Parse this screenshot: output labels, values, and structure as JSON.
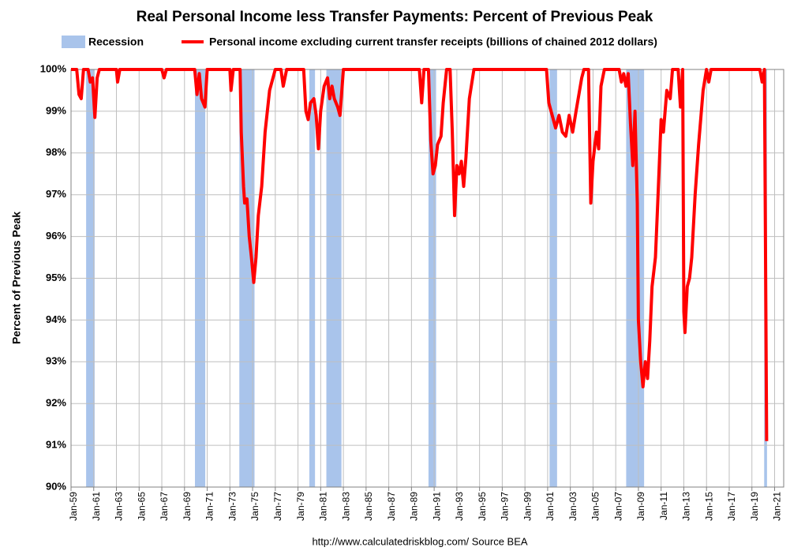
{
  "chart_data": {
    "type": "line",
    "title": "Real Personal Income less Transfer Payments: Percent of Previous Peak",
    "ylabel": "Percent of Previous Peak",
    "source": "http://www.calculatedriskblog.com/    Source BEA",
    "recession_name": "Recession",
    "recession_color": "#a9c4eb",
    "recessions": [
      [
        1960.33,
        1961.08
      ],
      [
        1969.92,
        1970.83
      ],
      [
        1973.83,
        1975.17
      ],
      [
        1980.0,
        1980.5
      ],
      [
        1981.5,
        1982.83
      ],
      [
        1990.5,
        1991.17
      ],
      [
        2001.17,
        2001.83
      ],
      [
        2007.92,
        2009.5
      ],
      [
        2020.08,
        2020.33
      ]
    ],
    "series": [
      {
        "name": "Personal income excluding current transfer receipts (billions of chained 2012 dollars)",
        "color": "#ff0000",
        "x": [
          1959.0,
          1959.5,
          1959.7,
          1959.9,
          1960.1,
          1960.5,
          1960.7,
          1960.9,
          1961.1,
          1961.3,
          1961.5,
          1963.0,
          1963.1,
          1963.3,
          1967.0,
          1967.2,
          1967.4,
          1969.9,
          1970.1,
          1970.3,
          1970.5,
          1970.8,
          1971.0,
          1973.0,
          1973.1,
          1973.3,
          1973.9,
          1974.0,
          1974.2,
          1974.3,
          1974.5,
          1974.7,
          1974.9,
          1975.1,
          1975.3,
          1975.5,
          1975.8,
          1976.1,
          1976.5,
          1977.0,
          1977.5,
          1977.7,
          1978.0,
          1979.5,
          1979.7,
          1979.9,
          1980.1,
          1980.4,
          1980.6,
          1980.8,
          1981.0,
          1981.3,
          1981.6,
          1981.8,
          1982.0,
          1982.2,
          1982.5,
          1982.7,
          1983.0,
          1989.7,
          1989.9,
          1990.1,
          1990.5,
          1990.7,
          1990.9,
          1991.1,
          1991.3,
          1991.6,
          1991.8,
          1992.1,
          1992.4,
          1992.6,
          1992.8,
          1993.0,
          1993.2,
          1993.4,
          1993.6,
          1993.8,
          1994.1,
          1994.5,
          2000.9,
          2001.1,
          2001.4,
          2001.7,
          2002.0,
          2002.3,
          2002.6,
          2002.9,
          2003.2,
          2003.5,
          2004.0,
          2004.2,
          2004.6,
          2004.8,
          2005.0,
          2005.3,
          2005.5,
          2005.7,
          2006.0,
          2007.3,
          2007.5,
          2007.7,
          2007.9,
          2008.1,
          2008.3,
          2008.5,
          2008.7,
          2008.9,
          2009.0,
          2009.2,
          2009.4,
          2009.6,
          2009.8,
          2010.0,
          2010.2,
          2010.5,
          2010.7,
          2011.0,
          2011.2,
          2011.5,
          2011.8,
          2012.0,
          2012.5,
          2012.7,
          2012.9,
          2013.0,
          2013.1,
          2013.3,
          2013.5,
          2013.7,
          2014.0,
          2014.3,
          2014.7,
          2015.0,
          2015.2,
          2015.4,
          2019.7,
          2019.9,
          2020.1,
          2020.3
        ],
        "values": [
          100,
          100,
          99.4,
          99.3,
          100,
          100,
          99.7,
          99.8,
          98.85,
          99.8,
          100,
          100,
          99.7,
          100,
          100,
          99.8,
          100,
          100,
          99.4,
          99.9,
          99.3,
          99.1,
          100,
          100,
          99.5,
          100,
          100,
          98.5,
          97.2,
          96.8,
          96.9,
          96.0,
          95.5,
          94.9,
          95.5,
          96.5,
          97.2,
          98.5,
          99.5,
          100,
          100,
          99.6,
          100,
          100,
          99.0,
          98.8,
          99.2,
          99.3,
          98.9,
          98.1,
          99.0,
          99.6,
          99.8,
          99.3,
          99.6,
          99.3,
          99.1,
          98.9,
          100,
          100,
          99.2,
          100,
          100,
          98.3,
          97.5,
          97.7,
          98.2,
          98.4,
          99.2,
          100,
          100,
          98.5,
          96.5,
          97.7,
          97.5,
          97.8,
          97.2,
          97.9,
          99.3,
          100,
          100,
          99.2,
          98.9,
          98.6,
          98.9,
          98.5,
          98.4,
          98.9,
          98.5,
          99.0,
          99.8,
          100,
          100,
          96.8,
          97.8,
          98.5,
          98.1,
          99.6,
          100,
          100,
          99.7,
          99.9,
          99.6,
          99.9,
          98.7,
          97.7,
          99.0,
          96.8,
          94.0,
          93.0,
          92.4,
          93.0,
          92.6,
          93.5,
          94.8,
          95.5,
          96.8,
          98.8,
          98.5,
          99.5,
          99.3,
          100,
          100,
          99.1,
          100,
          94.2,
          93.7,
          94.8,
          95.0,
          95.5,
          97.0,
          98.2,
          99.5,
          100,
          99.7,
          100,
          100,
          99.7,
          100,
          91.1
        ]
      }
    ],
    "xlim": [
      1959,
      2021.8
    ],
    "xticks": [
      {
        "value": 1959,
        "label": "Jan-59"
      },
      {
        "value": 1961,
        "label": "Jan-61"
      },
      {
        "value": 1963,
        "label": "Jan-63"
      },
      {
        "value": 1965,
        "label": "Jan-65"
      },
      {
        "value": 1967,
        "label": "Jan-67"
      },
      {
        "value": 1969,
        "label": "Jan-69"
      },
      {
        "value": 1971,
        "label": "Jan-71"
      },
      {
        "value": 1973,
        "label": "Jan-73"
      },
      {
        "value": 1975,
        "label": "Jan-75"
      },
      {
        "value": 1977,
        "label": "Jan-77"
      },
      {
        "value": 1979,
        "label": "Jan-79"
      },
      {
        "value": 1981,
        "label": "Jan-81"
      },
      {
        "value": 1983,
        "label": "Jan-83"
      },
      {
        "value": 1985,
        "label": "Jan-85"
      },
      {
        "value": 1987,
        "label": "Jan-87"
      },
      {
        "value": 1989,
        "label": "Jan-89"
      },
      {
        "value": 1991,
        "label": "Jan-91"
      },
      {
        "value": 1993,
        "label": "Jan-93"
      },
      {
        "value": 1995,
        "label": "Jan-95"
      },
      {
        "value": 1997,
        "label": "Jan-97"
      },
      {
        "value": 1999,
        "label": "Jan-99"
      },
      {
        "value": 2001,
        "label": "Jan-01"
      },
      {
        "value": 2003,
        "label": "Jan-03"
      },
      {
        "value": 2005,
        "label": "Jan-05"
      },
      {
        "value": 2007,
        "label": "Jan-07"
      },
      {
        "value": 2009,
        "label": "Jan-09"
      },
      {
        "value": 2011,
        "label": "Jan-11"
      },
      {
        "value": 2013,
        "label": "Jan-13"
      },
      {
        "value": 2015,
        "label": "Jan-15"
      },
      {
        "value": 2017,
        "label": "Jan-17"
      },
      {
        "value": 2019,
        "label": "Jan-19"
      },
      {
        "value": 2021,
        "label": "Jan-21"
      }
    ],
    "ylim": [
      90,
      100
    ],
    "yticks": [
      {
        "value": 90,
        "label": "90%"
      },
      {
        "value": 91,
        "label": "91%"
      },
      {
        "value": 92,
        "label": "92%"
      },
      {
        "value": 93,
        "label": "93%"
      },
      {
        "value": 94,
        "label": "94%"
      },
      {
        "value": 95,
        "label": "95%"
      },
      {
        "value": 96,
        "label": "96%"
      },
      {
        "value": 97,
        "label": "97%"
      },
      {
        "value": 98,
        "label": "98%"
      },
      {
        "value": 99,
        "label": "99%"
      },
      {
        "value": 100,
        "label": "100%"
      }
    ],
    "grid": true
  }
}
